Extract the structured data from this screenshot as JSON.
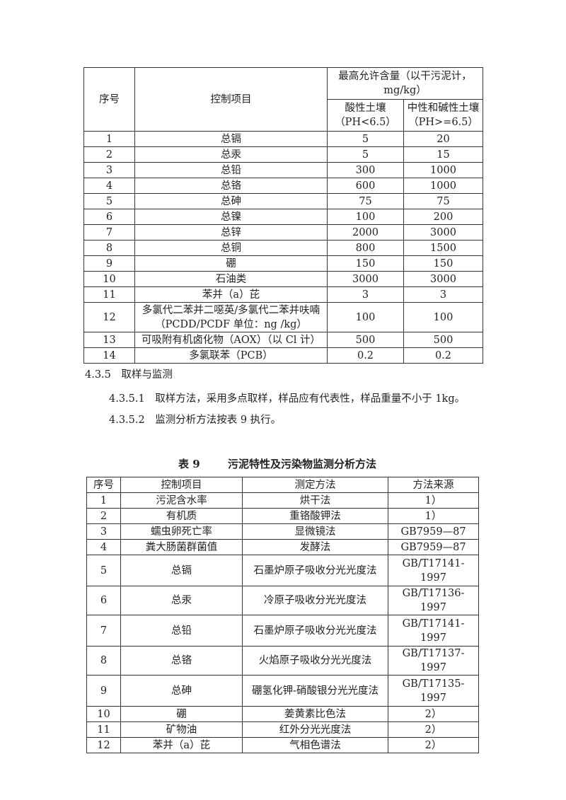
{
  "table8": {
    "header": {
      "no": "序号",
      "item": "控制项目",
      "max": "最高允许含量（以干污泥计，mg/kg）",
      "acid": "酸性土壤（PH<6.5）",
      "neutral": "中性和碱性土壤（PH>=6.5）"
    },
    "rows": [
      [
        "1",
        "总镉",
        "5",
        "20"
      ],
      [
        "2",
        "总汞",
        "5",
        "15"
      ],
      [
        "3",
        "总铅",
        "300",
        "1000"
      ],
      [
        "4",
        "总铬",
        "600",
        "1000"
      ],
      [
        "5",
        "总砷",
        "75",
        "75"
      ],
      [
        "6",
        "总镍",
        "100",
        "200"
      ],
      [
        "7",
        "总锌",
        "2000",
        "3000"
      ],
      [
        "8",
        "总铜",
        "800",
        "1500"
      ],
      [
        "9",
        "硼",
        "150",
        "150"
      ],
      [
        "10",
        "石油类",
        "3000",
        "3000"
      ],
      [
        "11",
        "苯并（a）芘",
        "3",
        "3"
      ],
      [
        "12",
        "多氯代二苯并二噁英/多氯代二苯并呋喃（PCDD/PCDF 单位：ng /kg）",
        "100",
        "100"
      ],
      [
        "13",
        "可吸附有机卤化物（AOX）（以 Cl 计）",
        "500",
        "500"
      ],
      [
        "14",
        "多氯联苯（PCB）",
        "0.2",
        "0.2"
      ]
    ]
  },
  "section": {
    "heading": "4.3.5　取样与监测",
    "p1": "4.3.5.1　取样方法，采用多点取样，样品应有代表性，样品重量不小于 1kg。",
    "p2": "4.3.5.2　监测分析方法按表 9 执行。"
  },
  "table9": {
    "caption_no": "表 9",
    "caption": "污泥特性及污染物监测分析方法",
    "header": [
      "序号",
      "控制项目",
      "测定方法",
      "方法来源"
    ],
    "rows": [
      [
        "1",
        "污泥含水率",
        "烘干法",
        "1）"
      ],
      [
        "2",
        "有机质",
        "重铬酸钾法",
        "1）"
      ],
      [
        "3",
        "蠕虫卵死亡率",
        "显微镜法",
        "GB7959—87"
      ],
      [
        "4",
        "粪大肠菌群菌值",
        "发酵法",
        "GB7959—87"
      ],
      [
        "5",
        "总镉",
        "石墨炉原子吸收分光光度法",
        "GB/T17141-1997"
      ],
      [
        "6",
        "总汞",
        "冷原子吸收分光光度法",
        "GB/T17136-1997"
      ],
      [
        "7",
        "总铅",
        "石墨炉原子吸收分光光度法",
        "GB/T17141-1997"
      ],
      [
        "8",
        "总铬",
        "火焰原子吸收分光光度法",
        "GB/T17137-1997"
      ],
      [
        "9",
        "总砷",
        "硼氢化钾-硝酸银分光光度法",
        "GB/T17135-1997"
      ],
      [
        "10",
        "硼",
        "姜黄素比色法",
        "2）"
      ],
      [
        "11",
        "矿物油",
        "红外分光光度法",
        "2）"
      ],
      [
        "12",
        "苯并（a）芘",
        "气相色谱法",
        "2）"
      ]
    ]
  }
}
